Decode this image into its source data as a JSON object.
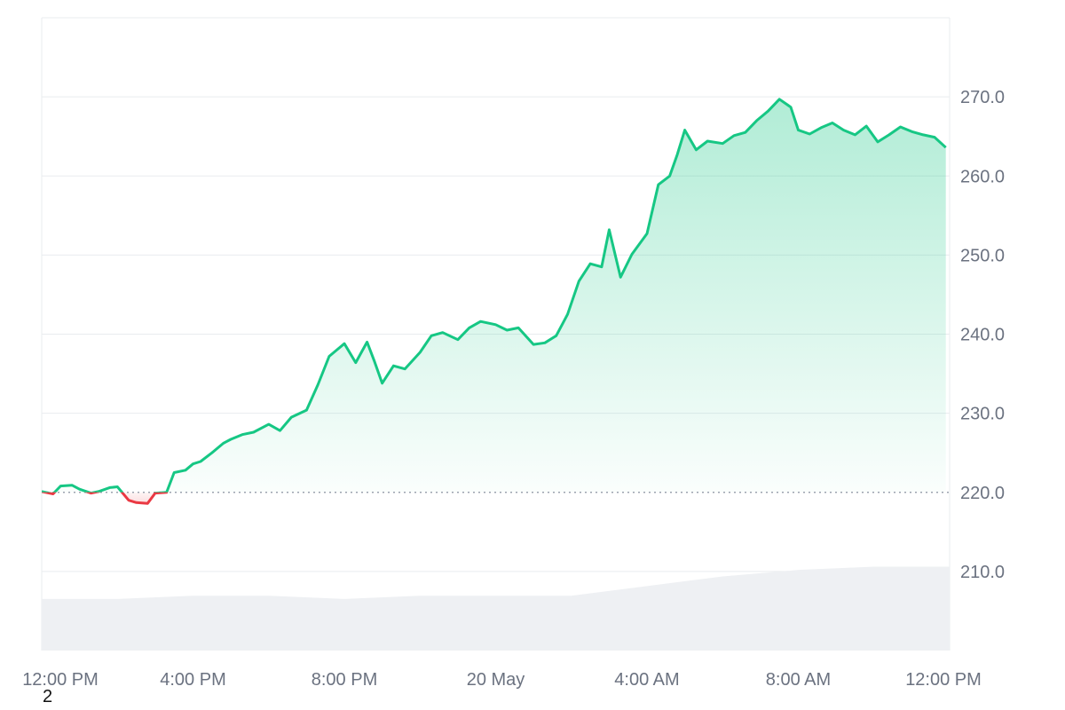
{
  "chart_data": {
    "type": "area",
    "title": "",
    "xlabel": "",
    "ylabel": "",
    "baseline": 220.0,
    "ylim": [
      200,
      280
    ],
    "xlim_hours": [
      0,
      24
    ],
    "y_ticks": [
      210.0,
      220.0,
      230.0,
      240.0,
      250.0,
      260.0,
      270.0
    ],
    "y_tick_labels": [
      "210.0",
      "220.0",
      "230.0",
      "240.0",
      "250.0",
      "260.0",
      "270.0"
    ],
    "x_ticks": [
      {
        "hours": 0,
        "label": "12:00 PM"
      },
      {
        "hours": 4,
        "label": "4:00 PM"
      },
      {
        "hours": 8,
        "label": "8:00 PM"
      },
      {
        "hours": 12,
        "label": "20 May"
      },
      {
        "hours": 16,
        "label": "4:00 AM"
      },
      {
        "hours": 20,
        "label": "8:00 AM"
      },
      {
        "hours": 24,
        "label": "12:00 PM"
      }
    ],
    "series": [
      {
        "x": [
          0,
          0.3,
          0.5,
          0.8,
          1.0,
          1.3,
          1.5,
          1.8,
          2.0,
          2.3,
          2.5,
          2.8,
          3.0,
          3.3,
          3.5,
          3.8,
          4.0,
          4.2,
          4.5,
          4.8,
          5.0,
          5.3,
          5.6,
          6.0,
          6.3,
          6.6,
          7.0,
          7.3,
          7.6,
          8.0,
          8.3,
          8.6,
          8.8,
          9.0,
          9.3,
          9.6,
          10.0,
          10.3,
          10.6,
          11.0,
          11.3,
          11.6,
          12.0,
          12.3,
          12.6,
          13.0,
          13.3,
          13.6,
          13.9,
          14.2,
          14.5,
          14.8,
          15.0,
          15.3,
          15.6,
          16.0,
          16.3,
          16.6,
          16.8,
          17.0,
          17.3,
          17.6,
          18.0,
          18.3,
          18.6,
          18.9,
          19.2,
          19.5,
          19.8,
          20.0,
          20.3,
          20.6,
          20.9,
          21.2,
          21.5,
          21.8,
          22.1,
          22.4,
          22.7,
          23.0,
          23.3,
          23.6,
          23.9
        ],
        "values": [
          220.1,
          219.8,
          220.8,
          220.9,
          220.4,
          219.9,
          220.1,
          220.6,
          220.7,
          219.0,
          218.7,
          218.6,
          219.9,
          220.0,
          222.5,
          222.8,
          223.6,
          223.9,
          225.0,
          226.2,
          226.7,
          227.3,
          227.6,
          228.6,
          227.8,
          229.5,
          230.4,
          233.6,
          237.2,
          238.8,
          236.4,
          239.0,
          236.5,
          233.8,
          236.0,
          235.6,
          237.7,
          239.8,
          240.2,
          239.3,
          240.8,
          241.6,
          241.2,
          240.5,
          240.8,
          238.7,
          238.9,
          239.8,
          242.5,
          246.7,
          248.9,
          248.5,
          253.2,
          247.2,
          250.1,
          252.7,
          258.9,
          260.0,
          262.7,
          265.8,
          263.3,
          264.4,
          264.1,
          265.1,
          265.5,
          267.0,
          268.2,
          269.7,
          268.7,
          265.8,
          265.3,
          266.1,
          266.7,
          265.8,
          265.2,
          266.3,
          264.3,
          265.2,
          266.2,
          265.6,
          265.2,
          264.9,
          263.6
        ]
      }
    ],
    "volume": {
      "x": [
        0,
        2,
        4,
        6,
        8,
        10,
        12,
        14,
        16,
        18,
        20,
        22,
        24
      ],
      "values": [
        0.16,
        0.16,
        0.17,
        0.17,
        0.16,
        0.17,
        0.17,
        0.17,
        0.2,
        0.23,
        0.25,
        0.26,
        0.26
      ]
    },
    "colors": {
      "up_line": "#16c784",
      "up_fill": "#16c784",
      "down_line": "#ea3943",
      "down_fill": "#ea3943",
      "volume": "#eef0f3",
      "grid": "#e9ecef",
      "baseline": "#9ca3af",
      "tick_text": "#6b7280"
    }
  },
  "corner_label": "2"
}
